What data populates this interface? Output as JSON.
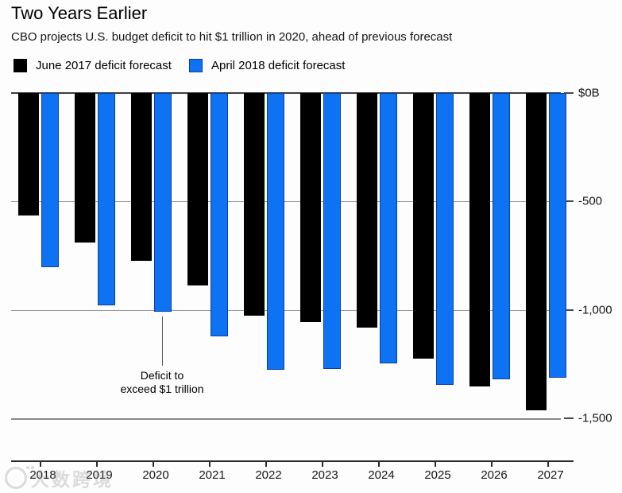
{
  "header": {
    "title": "Two Years Earlier",
    "subtitle": "CBO projects U.S. budget deficit to hit $1 trillion in 2020, ahead of previous forecast"
  },
  "legend": {
    "items": [
      {
        "label": "June 2017 deficit forecast",
        "color": "#000000"
      },
      {
        "label": "April 2018 deficit forecast",
        "color": "#0d73f2"
      }
    ]
  },
  "annotation": {
    "line1": "Deficit to",
    "line2": "exceed $1 trillion",
    "points_to_year": "2020",
    "points_to_series": "April 2018 deficit forecast"
  },
  "watermark": {
    "text": "大数跨境"
  },
  "chart_data": {
    "type": "bar",
    "title": "Two Years Earlier",
    "subtitle": "CBO projects U.S. budget deficit to hit $1 trillion in 2020, ahead of previous forecast",
    "unit": "billions of dollars",
    "categories": [
      "2018",
      "2019",
      "2020",
      "2021",
      "2022",
      "2023",
      "2024",
      "2025",
      "2026",
      "2027"
    ],
    "series": [
      {
        "name": "June 2017 deficit forecast",
        "color": "#000000",
        "values": [
          -563,
          -689,
          -775,
          -889,
          -1027,
          -1057,
          -1083,
          -1226,
          -1352,
          -1463
        ]
      },
      {
        "name": "April 2018 deficit forecast",
        "color": "#0d73f2",
        "values": [
          -804,
          -981,
          -1008,
          -1123,
          -1276,
          -1273,
          -1246,
          -1347,
          -1320,
          -1314
        ]
      }
    ],
    "y_axis": {
      "side": "right",
      "range": [
        -1500,
        0
      ],
      "ticks": [
        {
          "value": 0,
          "label": "$0B"
        },
        {
          "value": -500,
          "label": "-500"
        },
        {
          "value": -1000,
          "label": "-1,000"
        },
        {
          "value": -1500,
          "label": "-1,500"
        }
      ]
    },
    "grid": "horizontal",
    "legend_position": "top-left",
    "annotation": {
      "text": "Deficit to exceed $1 trillion",
      "year": "2020",
      "series": "April 2018 deficit forecast"
    }
  }
}
